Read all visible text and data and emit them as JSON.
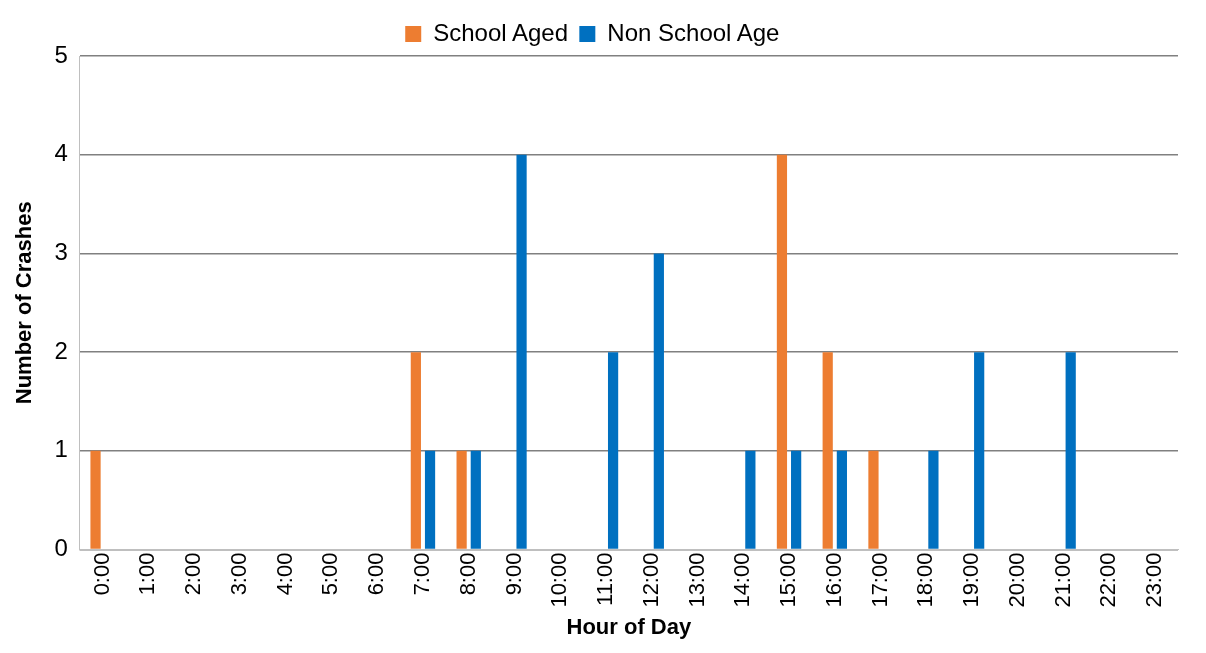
{
  "chart_data": {
    "type": "bar",
    "categories": [
      "0:00",
      "1:00",
      "2:00",
      "3:00",
      "4:00",
      "5:00",
      "6:00",
      "7:00",
      "8:00",
      "9:00",
      "10:00",
      "11:00",
      "12:00",
      "13:00",
      "14:00",
      "15:00",
      "16:00",
      "17:00",
      "18:00",
      "19:00",
      "20:00",
      "21:00",
      "22:00",
      "23:00"
    ],
    "series": [
      {
        "name": "School Aged",
        "color": "#ed7d31",
        "values": [
          1,
          0,
          0,
          0,
          0,
          0,
          0,
          2,
          1,
          0,
          0,
          0,
          0,
          0,
          0,
          4,
          2,
          1,
          0,
          0,
          0,
          0,
          0,
          0
        ]
      },
      {
        "name": "Non School Age",
        "color": "#0070c0",
        "values": [
          0,
          0,
          0,
          0,
          0,
          0,
          0,
          1,
          1,
          4,
          0,
          2,
          3,
          0,
          1,
          1,
          1,
          0,
          1,
          2,
          0,
          2,
          0,
          0
        ]
      }
    ],
    "xlabel": "Hour of Day",
    "ylabel": "Number of Crashes",
    "ylim": [
      0,
      5
    ],
    "yticks": [
      0,
      1,
      2,
      3,
      4,
      5
    ],
    "grid": "y",
    "legend": "top"
  }
}
